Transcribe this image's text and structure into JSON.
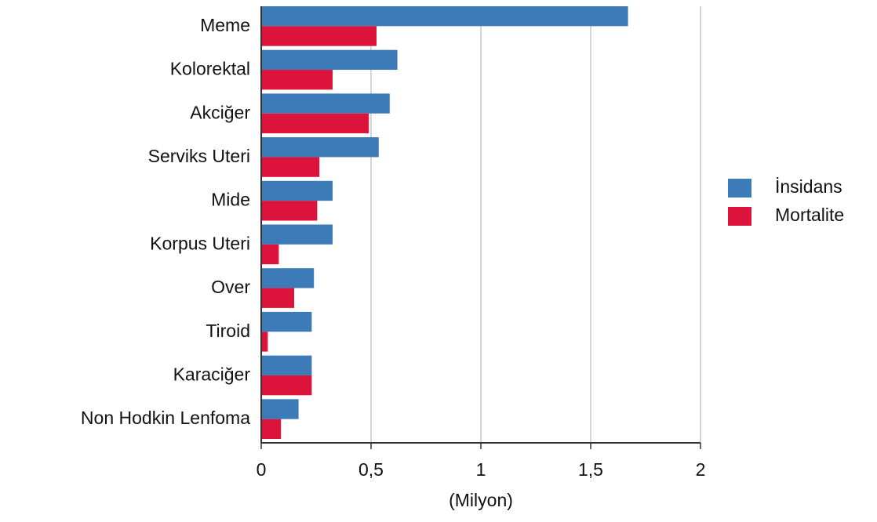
{
  "chart_data": {
    "type": "barh",
    "xlabel": "(Milyon)",
    "categories": [
      "Meme",
      "Kolorektal",
      "Akciğer",
      "Serviks Uteri",
      "Mide",
      "Korpus Uteri",
      "Over",
      "Tiroid",
      "Karaciğer",
      "Non Hodkin Lenfoma"
    ],
    "series": [
      {
        "name": "İnsidans",
        "color": "#3d7ab8",
        "values": [
          1.67,
          0.62,
          0.585,
          0.535,
          0.325,
          0.325,
          0.24,
          0.23,
          0.23,
          0.17
        ]
      },
      {
        "name": "Mortalite",
        "color": "#dc143c",
        "values": [
          0.525,
          0.325,
          0.49,
          0.265,
          0.255,
          0.08,
          0.15,
          0.03,
          0.23,
          0.09
        ]
      }
    ],
    "xlim": [
      0,
      2
    ],
    "xticks": [
      0,
      {
        "value": 0.5,
        "label": "0,5"
      },
      1,
      {
        "value": 1.5,
        "label": "1,5"
      },
      2
    ],
    "grid": true,
    "legend": "right"
  }
}
